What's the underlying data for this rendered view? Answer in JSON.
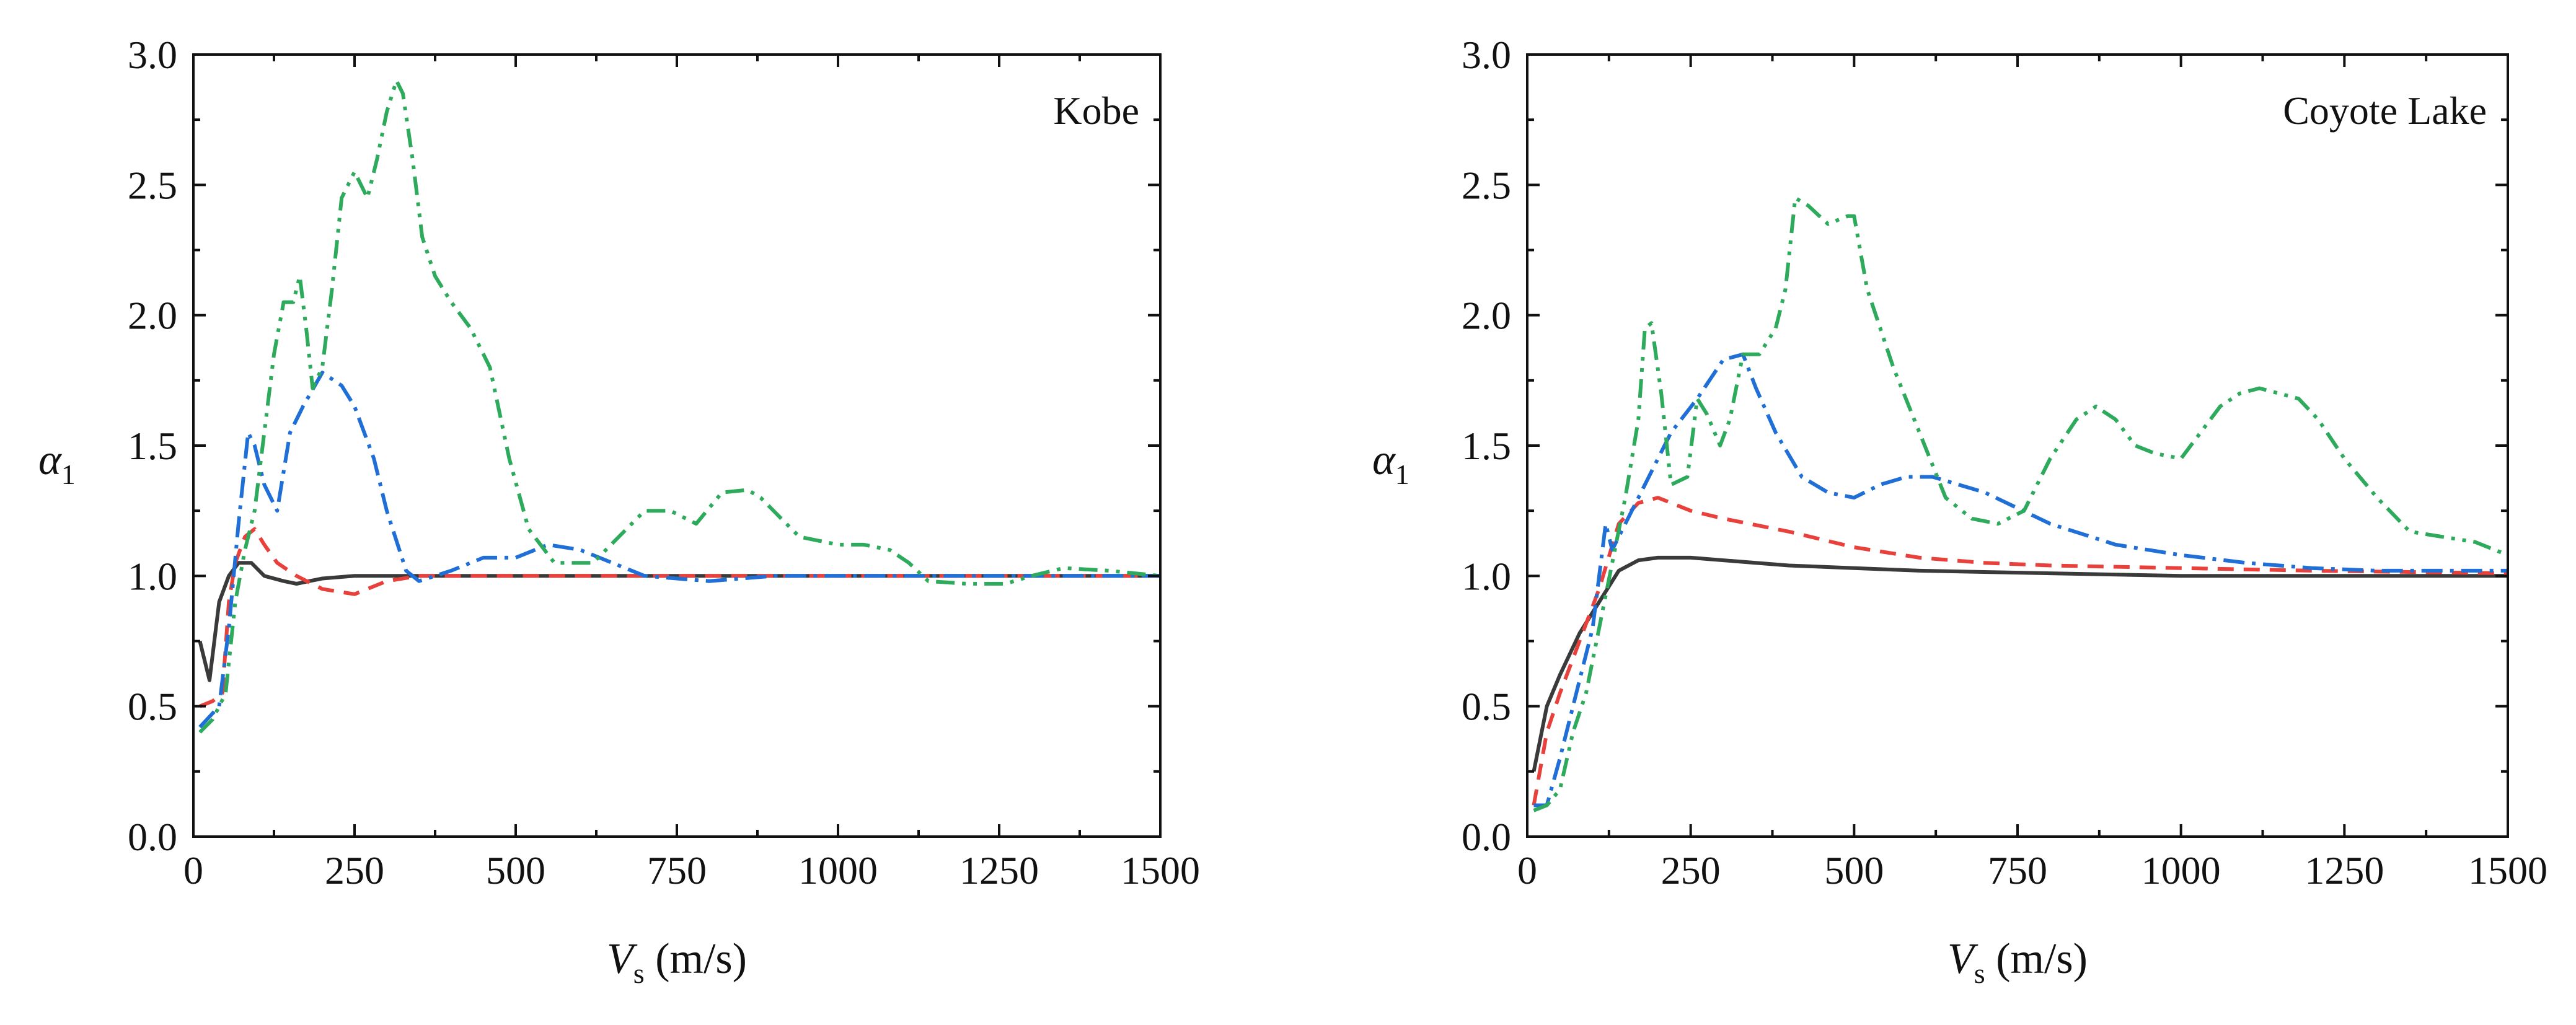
{
  "chart_data": [
    {
      "type": "line",
      "title": "",
      "annotation": "Kobe",
      "xlabel": {
        "main": "V",
        "sub": "s",
        "unit": " (m/s)"
      },
      "ylabel": {
        "main": "α",
        "sub": "1"
      },
      "xlim": [
        0,
        1500
      ],
      "ylim": [
        0,
        3
      ],
      "xticks": [
        0,
        250,
        500,
        750,
        1000,
        1250,
        1500
      ],
      "yticks": [
        0.0,
        0.5,
        1.0,
        1.5,
        2.0,
        2.5,
        3.0
      ],
      "ytick_labels": [
        "0.0",
        "0.5",
        "1.0",
        "1.5",
        "2.0",
        "2.5",
        "3.0"
      ],
      "grid": false,
      "series": [
        {
          "name": "solid",
          "color": "#3a3a3a",
          "dash": "none",
          "x": [
            10,
            25,
            40,
            55,
            70,
            90,
            110,
            140,
            160,
            180,
            200,
            250,
            300,
            400,
            600,
            800,
            1000,
            1200,
            1500
          ],
          "y": [
            0.75,
            0.6,
            0.9,
            1.0,
            1.05,
            1.05,
            1.0,
            0.98,
            0.97,
            0.98,
            0.99,
            1.0,
            1.0,
            1.0,
            1.0,
            1.0,
            1.0,
            1.0,
            1.0
          ]
        },
        {
          "name": "dashed",
          "color": "#e8413c",
          "dash": "26 16",
          "x": [
            10,
            30,
            45,
            55,
            65,
            80,
            95,
            110,
            130,
            160,
            200,
            250,
            300,
            350,
            400,
            500,
            600,
            700,
            800,
            1000,
            1200,
            1500
          ],
          "y": [
            0.5,
            0.52,
            0.55,
            0.9,
            1.05,
            1.15,
            1.18,
            1.12,
            1.05,
            1.0,
            0.95,
            0.93,
            0.98,
            1.0,
            1.0,
            1.0,
            1.0,
            1.0,
            1.0,
            1.0,
            1.0,
            1.0
          ]
        },
        {
          "name": "dash-dot",
          "color": "#1f6fd6",
          "dash": "34 12 6 12",
          "x": [
            10,
            40,
            55,
            70,
            85,
            95,
            110,
            130,
            150,
            170,
            200,
            230,
            250,
            280,
            300,
            330,
            350,
            400,
            450,
            500,
            550,
            600,
            650,
            700,
            800,
            900,
            1000,
            1500
          ],
          "y": [
            0.42,
            0.5,
            0.8,
            1.2,
            1.55,
            1.5,
            1.35,
            1.25,
            1.55,
            1.65,
            1.78,
            1.73,
            1.65,
            1.45,
            1.25,
            1.02,
            0.98,
            1.02,
            1.07,
            1.07,
            1.12,
            1.1,
            1.05,
            1.0,
            0.98,
            1.0,
            1.0,
            1.0
          ]
        },
        {
          "name": "dash-dot-dot",
          "color": "#2eaa5c",
          "dash": "30 12 6 12 6 12",
          "x": [
            10,
            30,
            50,
            65,
            80,
            95,
            110,
            125,
            140,
            155,
            165,
            175,
            185,
            200,
            215,
            230,
            250,
            270,
            285,
            300,
            315,
            325,
            340,
            355,
            375,
            400,
            430,
            460,
            490,
            520,
            560,
            620,
            660,
            700,
            740,
            780,
            820,
            860,
            880,
            900,
            940,
            1000,
            1040,
            1080,
            1110,
            1140,
            1200,
            1260,
            1300,
            1350,
            1420,
            1500
          ],
          "y": [
            0.4,
            0.45,
            0.55,
            0.9,
            1.1,
            1.25,
            1.55,
            1.85,
            2.05,
            2.05,
            2.15,
            1.95,
            1.72,
            1.8,
            2.1,
            2.45,
            2.55,
            2.45,
            2.6,
            2.78,
            2.9,
            2.85,
            2.6,
            2.3,
            2.15,
            2.05,
            1.95,
            1.8,
            1.45,
            1.18,
            1.05,
            1.05,
            1.15,
            1.25,
            1.25,
            1.2,
            1.32,
            1.33,
            1.3,
            1.25,
            1.15,
            1.12,
            1.12,
            1.1,
            1.05,
            0.98,
            0.97,
            0.97,
            1.0,
            1.03,
            1.02,
            1.0
          ]
        }
      ]
    },
    {
      "type": "line",
      "title": "",
      "annotation": "Coyote Lake",
      "xlabel": {
        "main": "V",
        "sub": "s",
        "unit": " (m/s)"
      },
      "ylabel": {
        "main": "α",
        "sub": "1"
      },
      "xlim": [
        0,
        1500
      ],
      "ylim": [
        0,
        3
      ],
      "xticks": [
        0,
        250,
        500,
        750,
        1000,
        1250,
        1500
      ],
      "yticks": [
        0.0,
        0.5,
        1.0,
        1.5,
        2.0,
        2.5,
        3.0
      ],
      "ytick_labels": [
        "0.0",
        "0.5",
        "1.0",
        "1.5",
        "2.0",
        "2.5",
        "3.0"
      ],
      "grid": false,
      "series": [
        {
          "name": "solid",
          "color": "#3a3a3a",
          "dash": "none",
          "x": [
            10,
            30,
            50,
            80,
            110,
            140,
            170,
            200,
            250,
            300,
            400,
            500,
            600,
            800,
            1000,
            1200,
            1500
          ],
          "y": [
            0.25,
            0.5,
            0.62,
            0.78,
            0.9,
            1.02,
            1.06,
            1.07,
            1.07,
            1.06,
            1.04,
            1.03,
            1.02,
            1.01,
            1.0,
            1.0,
            1.0
          ]
        },
        {
          "name": "dashed",
          "color": "#e8413c",
          "dash": "26 16",
          "x": [
            10,
            30,
            50,
            80,
            110,
            140,
            170,
            200,
            250,
            300,
            400,
            500,
            600,
            700,
            800,
            1000,
            1200,
            1500
          ],
          "y": [
            0.12,
            0.4,
            0.55,
            0.75,
            0.95,
            1.2,
            1.28,
            1.3,
            1.25,
            1.22,
            1.17,
            1.11,
            1.07,
            1.05,
            1.04,
            1.03,
            1.02,
            1.01
          ]
        },
        {
          "name": "dash-dot",
          "color": "#1f6fd6",
          "dash": "34 12 6 12",
          "x": [
            10,
            30,
            50,
            80,
            100,
            120,
            130,
            150,
            180,
            220,
            260,
            300,
            330,
            350,
            380,
            420,
            460,
            500,
            540,
            580,
            620,
            660,
            700,
            800,
            900,
            1000,
            1100,
            1200,
            1300,
            1500
          ],
          "y": [
            0.12,
            0.12,
            0.3,
            0.6,
            0.8,
            1.2,
            1.1,
            1.2,
            1.35,
            1.55,
            1.68,
            1.83,
            1.85,
            1.72,
            1.55,
            1.38,
            1.32,
            1.3,
            1.35,
            1.38,
            1.38,
            1.35,
            1.32,
            1.2,
            1.12,
            1.08,
            1.05,
            1.03,
            1.02,
            1.02
          ]
        },
        {
          "name": "dash-dot-dot",
          "color": "#2eaa5c",
          "dash": "30 12 6 12 6 12",
          "x": [
            10,
            30,
            50,
            70,
            90,
            110,
            130,
            150,
            170,
            180,
            190,
            205,
            220,
            245,
            260,
            275,
            295,
            310,
            330,
            355,
            380,
            395,
            410,
            430,
            460,
            490,
            500,
            520,
            540,
            560,
            600,
            640,
            680,
            720,
            760,
            800,
            840,
            870,
            900,
            930,
            960,
            1000,
            1030,
            1060,
            1090,
            1120,
            1150,
            1180,
            1210,
            1250,
            1300,
            1350,
            1400,
            1450,
            1500
          ],
          "y": [
            0.1,
            0.12,
            0.18,
            0.4,
            0.55,
            0.8,
            1.05,
            1.3,
            1.6,
            1.95,
            1.97,
            1.7,
            1.35,
            1.38,
            1.68,
            1.62,
            1.5,
            1.6,
            1.85,
            1.85,
            1.95,
            2.1,
            2.45,
            2.42,
            2.35,
            2.38,
            2.38,
            2.1,
            1.95,
            1.8,
            1.55,
            1.3,
            1.22,
            1.2,
            1.25,
            1.45,
            1.6,
            1.65,
            1.6,
            1.5,
            1.47,
            1.45,
            1.55,
            1.65,
            1.7,
            1.72,
            1.7,
            1.68,
            1.6,
            1.45,
            1.3,
            1.17,
            1.15,
            1.13,
            1.08
          ]
        }
      ]
    }
  ]
}
